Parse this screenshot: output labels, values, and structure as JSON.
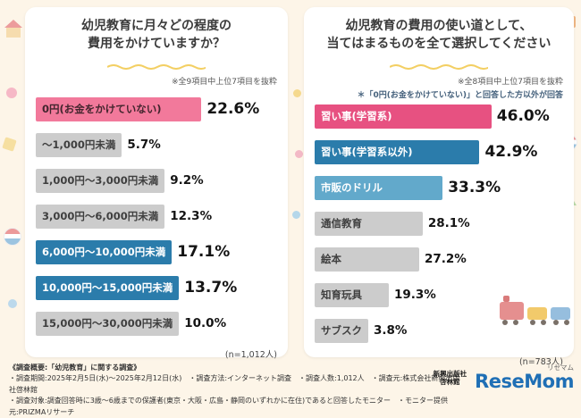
{
  "page": {
    "background": "#fdf5e8",
    "accent_pink": "#e75181",
    "accent_blue": "#2b7cab",
    "accent_lightblue": "#62a9cb",
    "bar_gray": "#cccccc"
  },
  "chart_data": [
    {
      "type": "bar",
      "title": "幼児教育に月々どの程度の費用をかけていますか？",
      "title_lines": [
        "幼児教育に月々どの程度の",
        "費用をかけていますか？"
      ],
      "note": "※全9項目中上位7項目を抜粋",
      "sample_label": "(n=1,012人)",
      "unit": "%",
      "xlim": [
        0,
        25
      ],
      "categories": [
        "0円(お金をかけていない)",
        "～1,000円未満",
        "1,000円～3,000円未満",
        "3,000円～6,000円未満",
        "6,000円～10,000円未満",
        "10,000円～15,000円未満",
        "15,000円～30,000円未満"
      ],
      "values": [
        22.6,
        5.7,
        9.2,
        12.3,
        17.1,
        13.7,
        10.0
      ],
      "bar_styles": [
        "pink-soft",
        "gray",
        "gray",
        "gray",
        "blue",
        "blue",
        "gray"
      ]
    },
    {
      "type": "bar",
      "title": "幼児教育の費用の使い道として、当てはまるものを全て選択してください",
      "title_lines": [
        "幼児教育の費用の使い道として、",
        "当てはまるものを全て選択してください"
      ],
      "note": "※全8項目中上位7項目を抜粋",
      "note2": "＊「0円(お金をかけていない)」と回答した方以外が回答",
      "sample_label": "(n=783人)",
      "unit": "%",
      "xlim": [
        0,
        50
      ],
      "categories": [
        "習い事(学習系)",
        "習い事(学習系以外)",
        "市販のドリル",
        "通信教育",
        "絵本",
        "知育玩具",
        "サブスク"
      ],
      "values": [
        46.0,
        42.9,
        33.3,
        28.1,
        27.2,
        19.3,
        3.8
      ],
      "bar_styles": [
        "pink",
        "blue",
        "lightblue",
        "gray",
        "gray",
        "gray",
        "gray"
      ]
    }
  ],
  "footer": {
    "heading": "《調査概要:「幼児教育」に関する調査》",
    "line1": "・調査期間:2025年2月5日(水)～2025年2月12日(水)　・調査方法:インターネット調査　・調査人数:1,012人　・調査元:株式会社新興出版社啓林館",
    "line2": "・調査対象:調査回答時に3歳～6歳までの保護者(東京・大阪・広島・静岡のいずれかに在住)であると回答したモニター　・モニター提供元:PRIZMAリサーチ"
  },
  "branding": {
    "publisher_line1": "新興出版社",
    "publisher_line2": "啓林館",
    "resemom_kana": "リセマム",
    "resemom": "ReseMom"
  }
}
